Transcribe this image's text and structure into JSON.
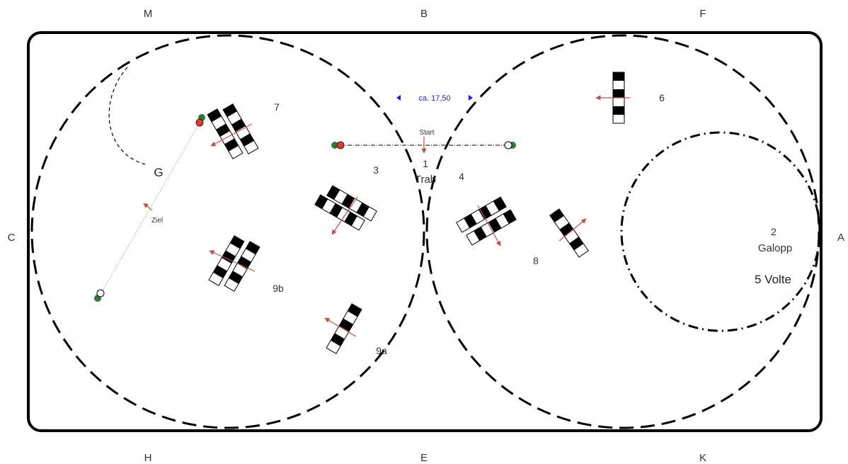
{
  "letters": {
    "M": "M",
    "B": "B",
    "F": "F",
    "C": "C",
    "A": "A",
    "H": "H",
    "E": "E",
    "K": "K"
  },
  "labels": {
    "n1": "1",
    "trab": "Trab",
    "n2": "2",
    "galopp": "Galopp",
    "volte": "5 Volte",
    "n3": "3",
    "n4": "4",
    "n6": "6",
    "n7": "7",
    "n8": "8",
    "n9a": "9a",
    "n9b": "9b",
    "g": "G",
    "start": "Start",
    "ziel": "Ziel",
    "distance": "ca. 17,50"
  },
  "colors": {
    "border": "#000000",
    "arrow": "#c0504d",
    "distance": "#1a1aee",
    "marker_green": "#2e7d32",
    "marker_red": "#e53935"
  }
}
